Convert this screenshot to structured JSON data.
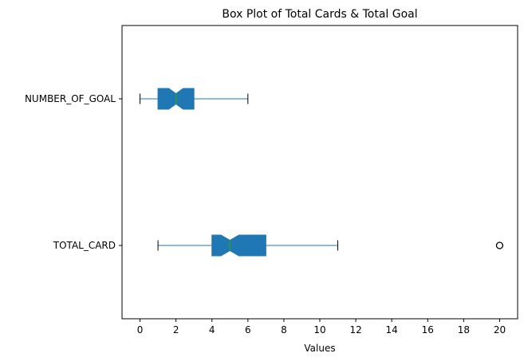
{
  "chart_data": {
    "type": "boxplot",
    "orientation": "horizontal",
    "notched": true,
    "title": "Box Plot of Total Cards & Total Goal",
    "xlabel": "Values",
    "ylabel": "",
    "xlim": [
      -1,
      21
    ],
    "xticks": [
      0,
      2,
      4,
      6,
      8,
      10,
      12,
      14,
      16,
      18,
      20
    ],
    "grid": false,
    "categories": [
      "NUMBER_OF_GOAL",
      "TOTAL_CARD"
    ],
    "series": [
      {
        "name": "NUMBER_OF_GOAL",
        "whisker_low": 0,
        "q1": 1,
        "median": 2,
        "q3": 3,
        "whisker_high": 6,
        "notch_low": 1.6,
        "notch_high": 2.4,
        "outliers": []
      },
      {
        "name": "TOTAL_CARD",
        "whisker_low": 1,
        "q1": 4,
        "median": 5,
        "q3": 7,
        "whisker_high": 11,
        "notch_low": 4.5,
        "notch_high": 5.5,
        "outliers": [
          20
        ]
      }
    ],
    "colors": {
      "box": "#1f77b4",
      "median": "#2ca02c",
      "whisker": "#1f77b4",
      "outlier": "#000000"
    }
  }
}
